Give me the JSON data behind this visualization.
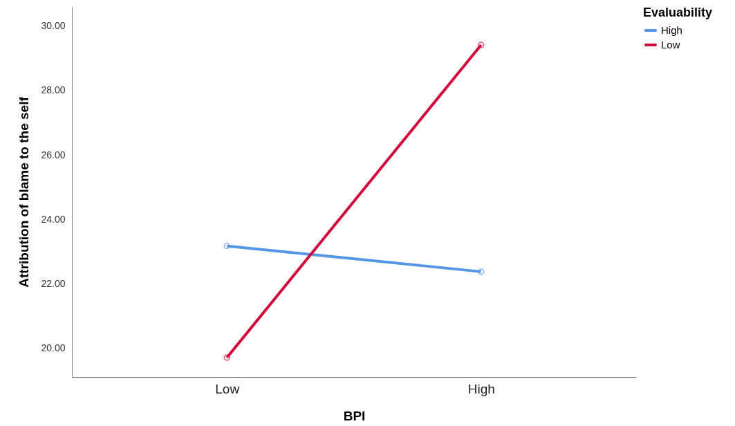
{
  "chart_data": {
    "type": "line",
    "xlabel": "BPI",
    "ylabel": "Attribution of blame to the self",
    "legend_title": "Evaluability",
    "categories": [
      "Low",
      "High"
    ],
    "series": [
      {
        "name": "High",
        "color": "#5596e6",
        "values": [
          23.17,
          22.37
        ]
      },
      {
        "name": "Low",
        "color": "#d3093a",
        "values": [
          19.7,
          29.42
        ]
      }
    ],
    "ylim": [
      19.1,
      30.6
    ],
    "yticks": [
      {
        "value": 20,
        "label": "20.00"
      },
      {
        "value": 22,
        "label": "22.00"
      },
      {
        "value": 24,
        "label": "24.00"
      },
      {
        "value": 26,
        "label": "26.00"
      },
      {
        "value": 28,
        "label": "28.00"
      },
      {
        "value": 30,
        "label": "30.00"
      }
    ],
    "grid": false,
    "legend": "top right",
    "marker": "circle",
    "line_style": "solid"
  }
}
